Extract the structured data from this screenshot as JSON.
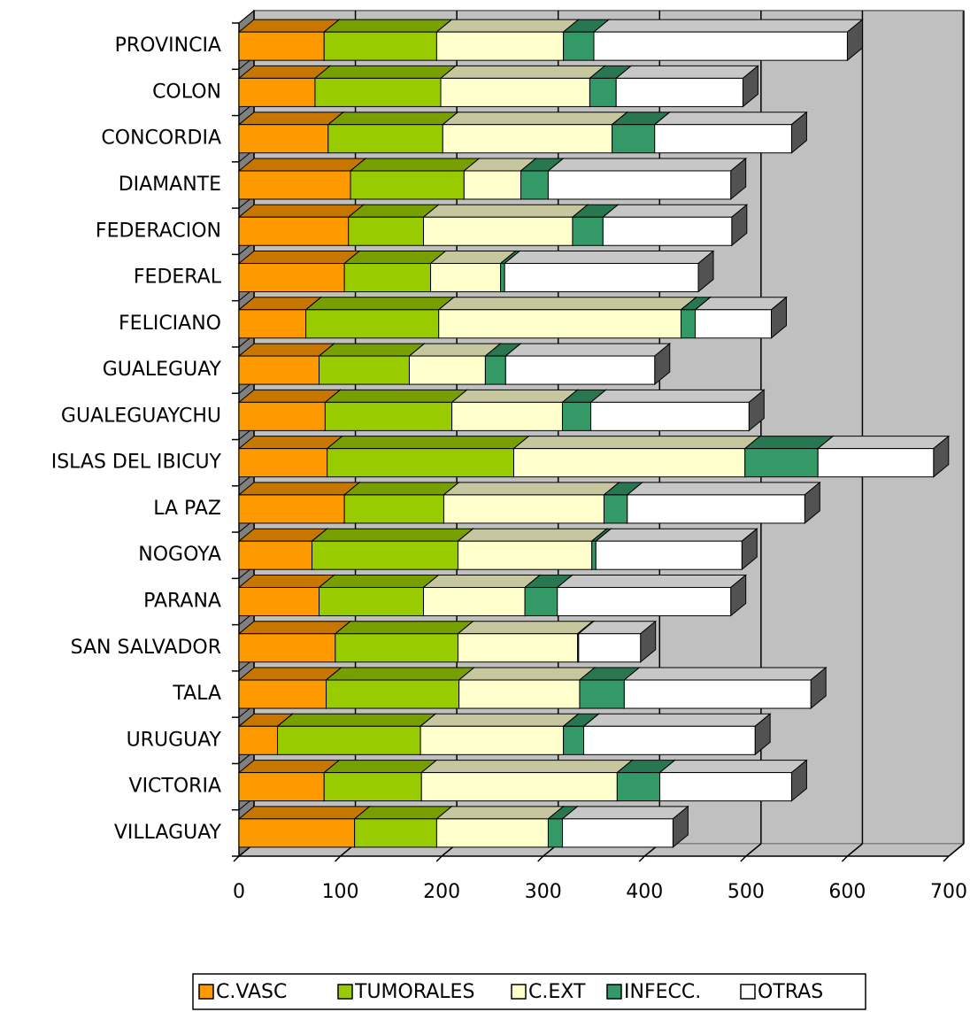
{
  "chart_data": {
    "type": "bar3d_stacked_horizontal",
    "categories": [
      "PROVINCIA",
      "COLON",
      "CONCORDIA",
      "DIAMANTE",
      "FEDERACION",
      "FEDERAL",
      "FELICIANO",
      "GUALEGUAY",
      "GUALEGUAYCHU",
      "ISLAS DEL IBICUY",
      "LA PAZ",
      "NOGOYA",
      "PARANA",
      "SAN SALVADOR",
      "TALA",
      "URUGUAY",
      "VICTORIA",
      "VILLAGUAY"
    ],
    "series": [
      {
        "name": "C.VASC",
        "color": "#ff9900",
        "values": [
          84,
          75,
          88,
          110,
          108,
          104,
          66,
          79,
          85,
          87,
          104,
          72,
          79,
          95,
          86,
          38,
          84,
          114
        ]
      },
      {
        "name": "TUMORALES",
        "color": "#99cc00",
        "values": [
          111,
          124,
          113,
          112,
          74,
          85,
          131,
          89,
          125,
          184,
          98,
          144,
          103,
          121,
          131,
          141,
          96,
          81
        ]
      },
      {
        "name": "C.EXT",
        "color": "#ffffcc",
        "values": [
          125,
          147,
          167,
          56,
          147,
          69,
          239,
          75,
          109,
          228,
          158,
          132,
          100,
          118,
          119,
          141,
          193,
          110
        ]
      },
      {
        "name": "INFECC.",
        "color": "#339966",
        "values": [
          30,
          26,
          42,
          27,
          30,
          4,
          14,
          20,
          28,
          72,
          23,
          4,
          32,
          1,
          44,
          20,
          42,
          14
        ]
      },
      {
        "name": "OTRAS",
        "color": "#ffffff",
        "values": [
          250,
          125,
          135,
          180,
          127,
          191,
          75,
          147,
          156,
          114,
          175,
          144,
          171,
          61,
          184,
          169,
          130,
          109
        ]
      }
    ],
    "xlim": [
      0,
      700
    ],
    "xticks": [
      0,
      100,
      200,
      300,
      400,
      500,
      600,
      700
    ],
    "grid": true,
    "legend": "bottom"
  }
}
